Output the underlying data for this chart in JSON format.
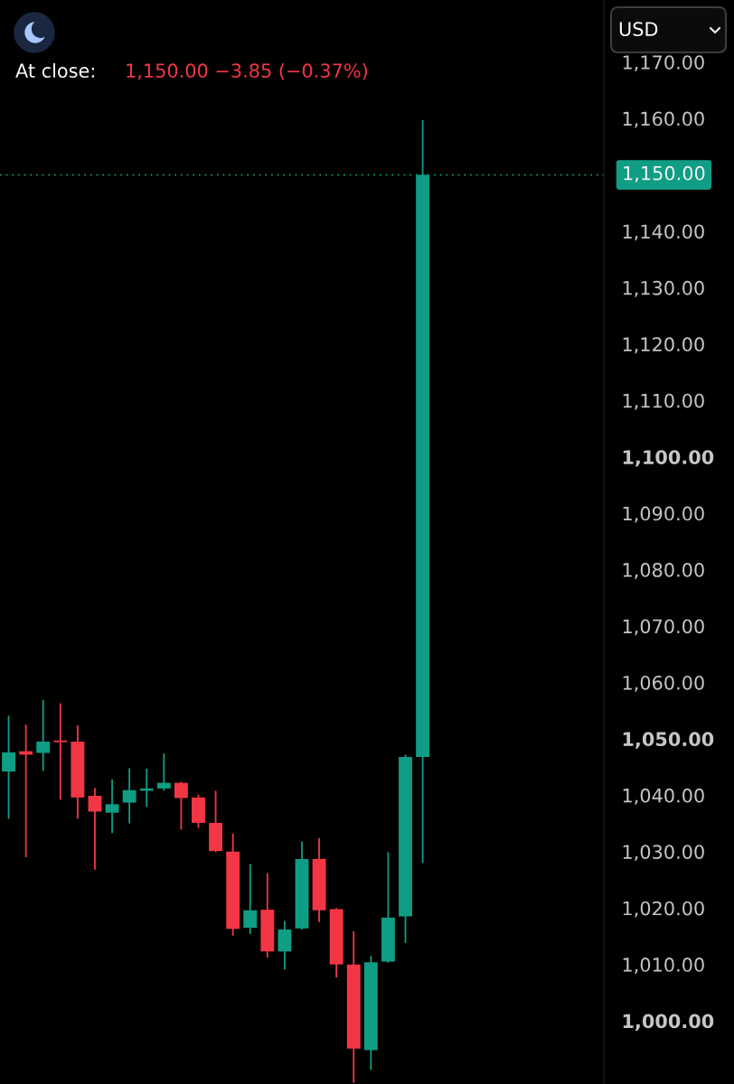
{
  "chart_data": {
    "type": "candlestick",
    "annotations": [
      "At close:",
      "1,150.00 −3.85 (−0.37%)",
      "USD"
    ],
    "categories": [
      null,
      null,
      null,
      null,
      null,
      null,
      null,
      null,
      null,
      null,
      null,
      null,
      null,
      null,
      null,
      null,
      null,
      null,
      null,
      null,
      null,
      null,
      null,
      null,
      null,
      null,
      null,
      null,
      null,
      null,
      null,
      null,
      null,
      null,
      null
    ],
    "ohlc": [
      [
        1044.2,
        1054.1,
        1035.8,
        1047.6
      ],
      [
        1047.8,
        1052.5,
        1029.0,
        1047.2
      ],
      [
        1047.5,
        1056.9,
        1044.3,
        1049.5
      ],
      [
        1049.7,
        1056.3,
        1039.2,
        1049.4
      ],
      [
        1049.5,
        1052.4,
        1035.8,
        1039.6
      ],
      [
        1039.9,
        1041.3,
        1026.8,
        1037.1
      ],
      [
        1036.9,
        1042.8,
        1033.3,
        1038.4
      ],
      [
        1038.7,
        1044.8,
        1035.0,
        1040.9
      ],
      [
        1040.8,
        1044.7,
        1037.9,
        1041.2
      ],
      [
        1041.2,
        1047.4,
        1040.8,
        1042.2
      ],
      [
        1042.2,
        1042.4,
        1033.9,
        1039.5
      ],
      [
        1039.6,
        1040.1,
        1034.2,
        1035.1
      ],
      [
        1035.1,
        1040.8,
        1029.9,
        1030.1
      ],
      [
        1030.0,
        1033.2,
        1015.1,
        1016.3
      ],
      [
        1016.5,
        1027.8,
        1015.4,
        1019.6
      ],
      [
        1019.7,
        1026.2,
        1011.2,
        1012.3
      ],
      [
        1012.3,
        1017.7,
        1009.1,
        1016.2
      ],
      [
        1016.4,
        1031.8,
        1016.2,
        1028.7
      ],
      [
        1028.7,
        1032.4,
        1017.5,
        1019.6
      ],
      [
        1019.8,
        1020.0,
        1007.7,
        1010.0
      ],
      [
        1010.0,
        1015.9,
        989.0,
        995.1
      ],
      [
        994.8,
        1011.5,
        991.3,
        1010.4
      ],
      [
        1010.5,
        1029.9,
        1010.3,
        1018.3
      ],
      [
        1018.5,
        1047.2,
        1013.8,
        1046.8
      ],
      [
        1046.8,
        1159.7,
        1028.0,
        1150.0
      ],
      null,
      null,
      null,
      null,
      null,
      null,
      null,
      null,
      null,
      null
    ],
    "colors": [
      "#0f9d84",
      "#f23645",
      "#0f9d84",
      "#f23645",
      "#f23645",
      "#f23645",
      "#0f9d84",
      "#0f9d84",
      "#0f9d84",
      "#0f9d84",
      "#f23645",
      "#f23645",
      "#f23645",
      "#f23645",
      "#0f9d84",
      "#f23645",
      "#0f9d84",
      "#0f9d84",
      "#f23645",
      "#f23645",
      "#f23645",
      "#0f9d84",
      "#0f9d84",
      "#0f9d84",
      "#0f9d84",
      null,
      null,
      null,
      null,
      null,
      null,
      null,
      null,
      null,
      null
    ],
    "ylim": [
      988.8,
      1181
    ],
    "yticks": [
      {
        "value": 1000,
        "label": "1,000.00"
      },
      {
        "value": 1010,
        "label": "1,010.00"
      },
      {
        "value": 1020,
        "label": "1,020.00"
      },
      {
        "value": 1030,
        "label": "1,030.00"
      },
      {
        "value": 1040,
        "label": "1,040.00"
      },
      {
        "value": 1050,
        "label": "1,050.00"
      },
      {
        "value": 1060,
        "label": "1,060.00"
      },
      {
        "value": 1070,
        "label": "1,070.00"
      },
      {
        "value": 1080,
        "label": "1,080.00"
      },
      {
        "value": 1090,
        "label": "1,090.00"
      },
      {
        "value": 1100,
        "label": "1,100.00"
      },
      {
        "value": 1110,
        "label": "1,110.00"
      },
      {
        "value": 1120,
        "label": "1,120.00"
      },
      {
        "value": 1130,
        "label": "1,130.00"
      },
      {
        "value": 1140,
        "label": "1,140.00"
      },
      {
        "value": 1160,
        "label": "1,160.00"
      },
      {
        "value": 1170,
        "label": "1,170.00"
      }
    ],
    "tick_labels": "y",
    "ref_lines": [
      {
        "axis": "y",
        "value": 1150,
        "label": "1,150.00",
        "color": "#0f9d84",
        "line_style": "dotted"
      }
    ]
  }
}
